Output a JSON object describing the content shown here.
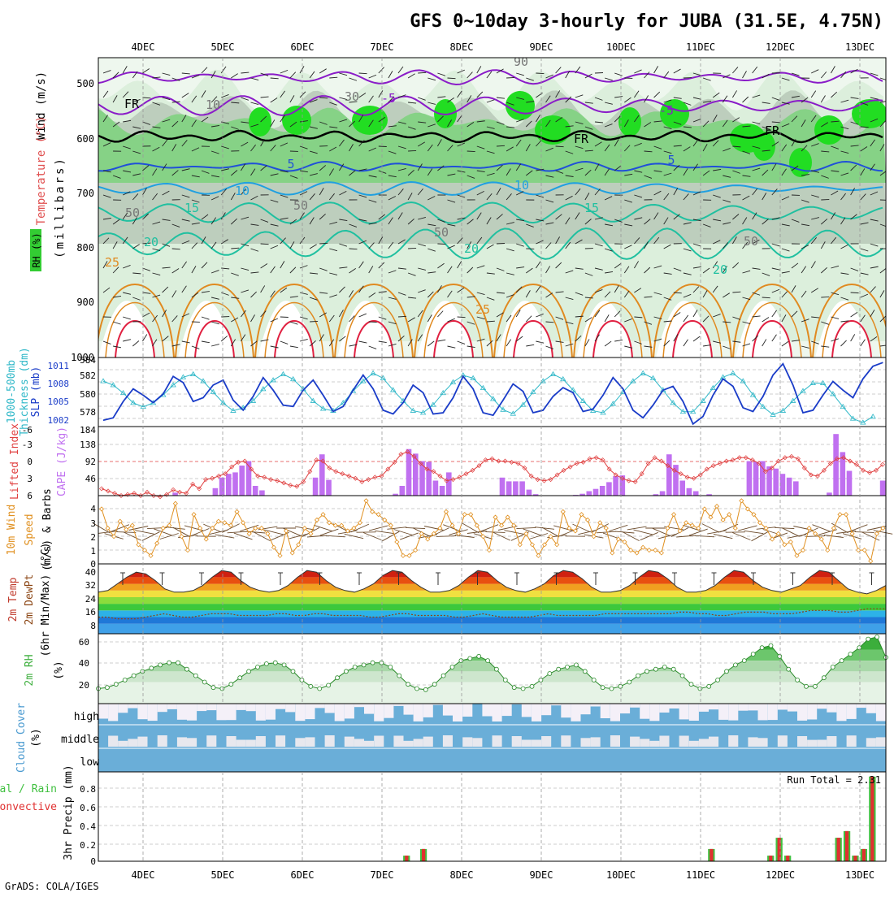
{
  "title": "GFS 0~10day 3-hourly for JUBA (31.5E, 4.75N)",
  "footer": "GrADS: COLA/IGES",
  "dates": [
    "4DEC",
    "5DEC",
    "6DEC",
    "7DEC",
    "8DEC",
    "9DEC",
    "10DEC",
    "11DEC",
    "12DEC",
    "13DEC"
  ],
  "colors": {
    "rh_green": "#33cc33",
    "rh_light": "#dcefdc",
    "rh_gray": "#b7c8b7",
    "temp_purple": "#8a1cc8",
    "temp_blue": "#2050d8",
    "temp_cyan": "#20a0e0",
    "temp_teal": "#20c0a0",
    "temp_orange": "#e08a20",
    "temp_red": "#e02040",
    "thick_cyan": "#30b8c8",
    "slp_blue": "#1a3cc8",
    "li_red": "#e04040",
    "cape_purple": "#c070f0",
    "wind_orange": "#e09020",
    "rh2m_green": "#40b040",
    "cloud_blue": "#6aaed8",
    "precip_green": "#40c040",
    "precip_red": "#e03030"
  },
  "panels": {
    "upper": {
      "ylabel_wind": "Wind (m/s)",
      "ylabel_temp": "Temperature (°C)",
      "ylabel_rh": "RH (%)",
      "ylabel_unit": "(millibars)",
      "yticks": [
        "500",
        "600",
        "700",
        "800",
        "900",
        "1000"
      ],
      "contour_labels": {
        "fr": "FR",
        "t_m5": "-5",
        "t_5": "5",
        "t_10": "10",
        "t_15": "15",
        "t_20": "20",
        "t_25": "25",
        "rh_10": "10",
        "rh_30": "30",
        "rh_50": "50",
        "rh_90": "90"
      }
    },
    "thickness": {
      "ylabel1": "1000-500mb",
      "ylabel2": "Thickness (dm)",
      "ylabel3": "SLP (mb)",
      "left_ticks": [
        "584",
        "582",
        "580",
        "578"
      ],
      "right_ticks": [
        "1011",
        "1008",
        "1005",
        "1002"
      ]
    },
    "cape": {
      "ylabel1": "Lifted Index",
      "ylabel2": "CAPE (J/kg)",
      "left_ticks": [
        "-6",
        "-3",
        "0",
        "3",
        "6"
      ],
      "right_ticks": [
        "184",
        "138",
        "92",
        "46"
      ]
    },
    "wind10m": {
      "ylabel1": "10m Wind",
      "ylabel2": "Speed",
      "ylabel3": "(m/s) & Barbs",
      "ticks": [
        "4",
        "3",
        "2",
        "1",
        "0"
      ]
    },
    "temp2m": {
      "ylabel1": "2m Temp",
      "ylabel2": "2m DewPt",
      "ylabel3": "(6hr Min/Max) (°C)",
      "ticks": [
        "40",
        "32",
        "24",
        "16",
        "8"
      ]
    },
    "rh2m": {
      "ylabel1": "2m RH",
      "ylabel2": "(%)",
      "ticks": [
        "60",
        "40",
        "20"
      ]
    },
    "cloud": {
      "ylabel1": "Cloud Cover",
      "ylabel2": "(%)",
      "levels": [
        "high",
        "middle",
        "low"
      ]
    },
    "precip": {
      "ylabel1": "Total / Rain",
      "ylabel2": "Convective",
      "ylabel3": "3hr Precip (mm)",
      "ticks": [
        "0.8",
        "0.6",
        "0.4",
        "0.2",
        "0"
      ],
      "run_total": "Run Total = 2.31"
    }
  },
  "chart_data": [
    {
      "type": "line",
      "title": "1000-500mb Thickness (dm) and SLP (mb)",
      "x_start": "3DEC 12Z",
      "x_step_hours": 3,
      "series": [
        {
          "name": "Thickness (dm)",
          "axis": "left",
          "ylim": [
            577,
            584
          ],
          "values": [
            581.6,
            581.2,
            580.4,
            579.4,
            579.0,
            579.4,
            580.2,
            581.2,
            582.0,
            582.3,
            581.6,
            580.5,
            579.4,
            578.6,
            578.9,
            579.6,
            580.8,
            581.7,
            582.3,
            581.8,
            580.8,
            579.6,
            578.8,
            578.6,
            579.4,
            580.6,
            581.6,
            582.4,
            581.9,
            580.7,
            579.6,
            578.6,
            578.4,
            579.2,
            580.4,
            581.5,
            582.2,
            581.9,
            580.9,
            579.8,
            578.7,
            578.3,
            579.2,
            580.5,
            581.6,
            582.3,
            581.8,
            580.7,
            579.6,
            578.6,
            578.4,
            579.3,
            580.5,
            581.6,
            582.4,
            581.9,
            580.7,
            579.4,
            578.5,
            578.5,
            579.6,
            580.9,
            582.0,
            582.4,
            581.6,
            580.2,
            579.0,
            578.2,
            578.6,
            579.6,
            580.6,
            581.4,
            581.4,
            580.3,
            579.0,
            577.8,
            577.4,
            578.0
          ]
        },
        {
          "name": "SLP (mb)",
          "axis": "right",
          "ylim": [
            1001,
            1012
          ],
          "values": [
            1002.0,
            1002.4,
            1005.0,
            1007.0,
            1006.0,
            1004.8,
            1006.2,
            1009.0,
            1008.0,
            1005.0,
            1005.6,
            1007.6,
            1008.4,
            1005.2,
            1003.6,
            1005.8,
            1008.8,
            1006.8,
            1004.4,
            1004.2,
            1006.8,
            1008.4,
            1006.0,
            1003.4,
            1004.2,
            1006.8,
            1009.2,
            1007.0,
            1003.6,
            1003.0,
            1004.8,
            1007.6,
            1006.4,
            1003.0,
            1003.2,
            1005.6,
            1009.0,
            1007.0,
            1003.2,
            1002.8,
            1005.2,
            1007.8,
            1006.6,
            1003.2,
            1003.6,
            1005.8,
            1007.2,
            1006.4,
            1003.4,
            1003.8,
            1006.0,
            1008.8,
            1007.0,
            1003.6,
            1002.4,
            1004.4,
            1006.8,
            1007.4,
            1005.0,
            1001.4,
            1002.6,
            1006.0,
            1008.6,
            1007.4,
            1004.0,
            1003.4,
            1005.8,
            1009.2,
            1011.0,
            1007.6,
            1003.2,
            1003.6,
            1006.0,
            1008.2,
            1006.8,
            1005.6,
            1008.6,
            1010.6,
            1011.2
          ]
        }
      ]
    },
    {
      "type": "bar",
      "title": "Lifted Index / CAPE (J/kg)",
      "cape_ylim": [
        0,
        184
      ],
      "cape_values": [
        0,
        0,
        0,
        0,
        0,
        0,
        0,
        0,
        0,
        0,
        0,
        8,
        0,
        0,
        0,
        0,
        0,
        20,
        48,
        58,
        62,
        80,
        92,
        26,
        14,
        0,
        0,
        0,
        0,
        0,
        0,
        0,
        48,
        110,
        42,
        0,
        0,
        0,
        0,
        0,
        0,
        0,
        0,
        0,
        5,
        26,
        124,
        112,
        92,
        90,
        40,
        26,
        62,
        0,
        0,
        0,
        0,
        0,
        0,
        0,
        48,
        38,
        38,
        38,
        16,
        4,
        0,
        0,
        0,
        0,
        0,
        2,
        5,
        12,
        18,
        26,
        36,
        52,
        54,
        0,
        0,
        0,
        0,
        4,
        12,
        110,
        82,
        40,
        20,
        12,
        0,
        4,
        0,
        0,
        0,
        0,
        0,
        92,
        90,
        92,
        78,
        72,
        58,
        48,
        38,
        0,
        0,
        0,
        0,
        8,
        164,
        116,
        66,
        0,
        0,
        0,
        0,
        40
      ],
      "li_ylim": [
        6,
        -6
      ],
      "li_values": [
        4.8,
        5.2,
        5.6,
        6.0,
        5.8,
        5.6,
        6.0,
        5.4,
        6.0,
        6.2,
        5.8,
        5.0,
        5.4,
        5.6,
        4.0,
        4.8,
        3.2,
        3.0,
        2.6,
        2.2,
        1.0,
        0.2,
        0.0,
        1.4,
        2.6,
        2.8,
        3.2,
        3.4,
        3.8,
        4.2,
        4.4,
        3.6,
        1.8,
        -0.2,
        0.0,
        1.2,
        1.8,
        2.2,
        2.6,
        3.0,
        3.6,
        3.2,
        2.8,
        2.6,
        1.4,
        0.2,
        -1.2,
        -1.6,
        -0.8,
        0.4,
        1.4,
        1.8,
        2.6,
        3.4,
        3.2,
        2.8,
        2.2,
        1.6,
        0.8,
        -0.2,
        -0.4,
        0.0,
        0.0,
        0.2,
        0.4,
        1.2,
        2.6,
        3.2,
        3.4,
        3.2,
        2.4,
        1.6,
        1.0,
        0.4,
        0.2,
        -0.4,
        -0.6,
        -0.2,
        1.4,
        2.4,
        3.0,
        3.4,
        3.6,
        2.2,
        0.4,
        -0.6,
        0.0,
        0.8,
        1.6,
        2.2,
        2.8,
        3.0,
        2.4,
        1.4,
        0.8,
        0.4,
        0.0,
        -0.2,
        -0.6,
        -0.6,
        -0.2,
        0.4,
        1.8,
        1.2,
        0.0,
        -0.6,
        -0.8,
        -0.4,
        1.2,
        2.4,
        2.6,
        1.6,
        0.4,
        -0.4,
        -0.6,
        0.0,
        0.6,
        1.6,
        2.0,
        1.6,
        0.6
      ]
    },
    {
      "type": "line",
      "title": "10m Wind Speed (m/s)",
      "ylim": [
        0,
        4.5
      ],
      "values": [
        4.0,
        2.6,
        2.0,
        3.1,
        2.5,
        2.8,
        1.4,
        1.0,
        0.6,
        1.5,
        2.6,
        2.8,
        4.4,
        2.0,
        1.0,
        3.6,
        2.6,
        1.8,
        2.6,
        3.1,
        3.0,
        2.8,
        3.8,
        3.0,
        2.2,
        2.6,
        2.6,
        2.2,
        1.2,
        0.6,
        2.4,
        0.8,
        1.4,
        2.6,
        2.2,
        3.2,
        3.6,
        3.0,
        2.8,
        2.8,
        2.4,
        2.6,
        3.0,
        4.6,
        3.8,
        3.6,
        3.2,
        2.8,
        1.6,
        0.6,
        0.6,
        1.0,
        2.2,
        1.8,
        2.2,
        2.6,
        3.8,
        2.8,
        2.2,
        3.6,
        3.6,
        2.8,
        2.0,
        1.0,
        3.4,
        2.8,
        3.4,
        2.8,
        1.4,
        2.2,
        1.4,
        0.6,
        1.4,
        2.0,
        1.4,
        3.8,
        2.6,
        2.4,
        3.6,
        3.2,
        2.0,
        3.0,
        2.6,
        0.8,
        1.8,
        1.6,
        1.0,
        0.8,
        1.2,
        1.0,
        1.0,
        0.8,
        2.6,
        3.6,
        2.4,
        3.0,
        2.8,
        2.6,
        4.0,
        3.4,
        4.2,
        3.2,
        3.6,
        2.6,
        4.6,
        4.0,
        3.6,
        3.0,
        2.6,
        1.8,
        2.2,
        1.4,
        1.6,
        0.6,
        1.0,
        2.6,
        2.2,
        1.8,
        1.0,
        2.6,
        3.6,
        3.6,
        2.2,
        1.0,
        1.0,
        0.2,
        2.2,
        2.6
      ]
    },
    {
      "type": "area",
      "title": "2m Temp and 2m DewPt (°C)",
      "ylim": [
        0,
        42
      ],
      "temp_values": [
        25,
        26,
        30,
        34,
        37,
        36,
        32,
        27,
        25,
        25,
        26,
        29,
        34,
        38,
        37,
        32,
        28,
        26,
        25,
        26,
        29,
        34,
        38,
        37,
        32,
        28,
        26,
        25,
        27,
        30,
        35,
        38,
        37,
        32,
        28,
        25,
        25,
        26,
        29,
        34,
        38,
        37,
        32,
        28,
        26,
        25,
        27,
        30,
        35,
        38,
        37,
        33,
        28,
        25,
        25,
        26,
        29,
        34,
        38,
        37,
        33,
        28,
        25,
        25,
        26,
        29,
        34,
        38,
        37,
        32,
        28,
        26,
        25,
        27,
        29,
        34,
        38,
        37,
        32,
        27,
        25,
        24,
        26,
        29
      ],
      "dewpt_values": [
        10,
        10,
        9,
        9,
        9,
        10,
        11,
        12,
        11,
        10,
        10,
        11,
        12,
        12,
        12,
        11,
        11,
        11,
        11,
        12,
        12,
        11,
        11,
        12,
        12,
        11,
        11,
        11,
        11,
        10,
        10,
        11,
        12,
        12,
        11,
        11,
        11,
        11,
        10,
        10,
        11,
        12,
        11,
        10,
        10,
        10,
        10,
        11,
        12,
        11,
        11,
        11,
        11,
        11,
        12,
        12,
        12,
        12,
        12,
        12,
        12,
        12,
        13,
        13,
        12,
        12,
        11,
        11,
        12,
        13,
        13,
        13,
        12,
        12,
        12,
        13,
        14,
        14,
        14,
        13,
        13,
        14,
        15,
        15,
        15
      ]
    },
    {
      "type": "area",
      "title": "2m RH (%)",
      "ylim": [
        0,
        65
      ],
      "values": [
        14,
        15,
        18,
        22,
        26,
        30,
        33,
        36,
        38,
        38,
        32,
        26,
        20,
        15,
        14,
        18,
        24,
        30,
        34,
        37,
        38,
        36,
        30,
        22,
        16,
        14,
        17,
        24,
        30,
        34,
        36,
        38,
        38,
        34,
        26,
        18,
        14,
        13,
        18,
        26,
        34,
        40,
        42,
        44,
        40,
        32,
        22,
        15,
        14,
        16,
        22,
        28,
        32,
        34,
        36,
        30,
        22,
        15,
        14,
        16,
        20,
        26,
        30,
        32,
        34,
        32,
        26,
        18,
        14,
        16,
        22,
        30,
        36,
        40,
        46,
        52,
        54,
        44,
        32,
        22,
        16,
        16,
        24,
        34,
        40,
        46,
        52,
        60,
        62,
        43
      ]
    },
    {
      "type": "bar",
      "title": "3hr Precip (mm)",
      "ylim": [
        0,
        0.95
      ],
      "run_total": 2.31,
      "total_values": [
        0,
        0,
        0,
        0,
        0,
        0,
        0,
        0,
        0,
        0,
        0,
        0,
        0,
        0,
        0,
        0,
        0,
        0,
        0,
        0,
        0,
        0,
        0,
        0,
        0,
        0,
        0,
        0,
        0,
        0,
        0,
        0,
        0,
        0,
        0,
        0,
        0.06,
        0,
        0.13,
        0,
        0,
        0,
        0,
        0,
        0,
        0,
        0,
        0,
        0,
        0,
        0,
        0,
        0,
        0,
        0,
        0,
        0,
        0,
        0,
        0,
        0,
        0,
        0,
        0,
        0,
        0,
        0,
        0,
        0,
        0,
        0,
        0,
        0.13,
        0,
        0,
        0,
        0,
        0,
        0,
        0.06,
        0.25,
        0.06,
        0,
        0,
        0,
        0,
        0,
        0.25,
        0.32,
        0.06,
        0.13,
        0.9,
        0
      ],
      "rain_values": [
        0,
        0,
        0,
        0,
        0,
        0,
        0,
        0,
        0,
        0,
        0,
        0,
        0,
        0,
        0,
        0,
        0,
        0,
        0,
        0,
        0,
        0,
        0,
        0,
        0,
        0,
        0,
        0,
        0,
        0,
        0,
        0,
        0,
        0,
        0,
        0,
        0.06,
        0,
        0.13,
        0,
        0,
        0,
        0,
        0,
        0,
        0,
        0,
        0,
        0,
        0,
        0,
        0,
        0,
        0,
        0,
        0,
        0,
        0,
        0,
        0,
        0,
        0,
        0,
        0,
        0,
        0,
        0,
        0,
        0,
        0,
        0,
        0,
        0.13,
        0,
        0,
        0,
        0,
        0,
        0,
        0.06,
        0.25,
        0.06,
        0,
        0,
        0,
        0,
        0,
        0.25,
        0.32,
        0.06,
        0.13,
        0.9,
        0
      ]
    },
    {
      "type": "heatmap",
      "title": "Cloud Cover (%)",
      "levels": [
        "high",
        "middle",
        "low"
      ]
    }
  ]
}
